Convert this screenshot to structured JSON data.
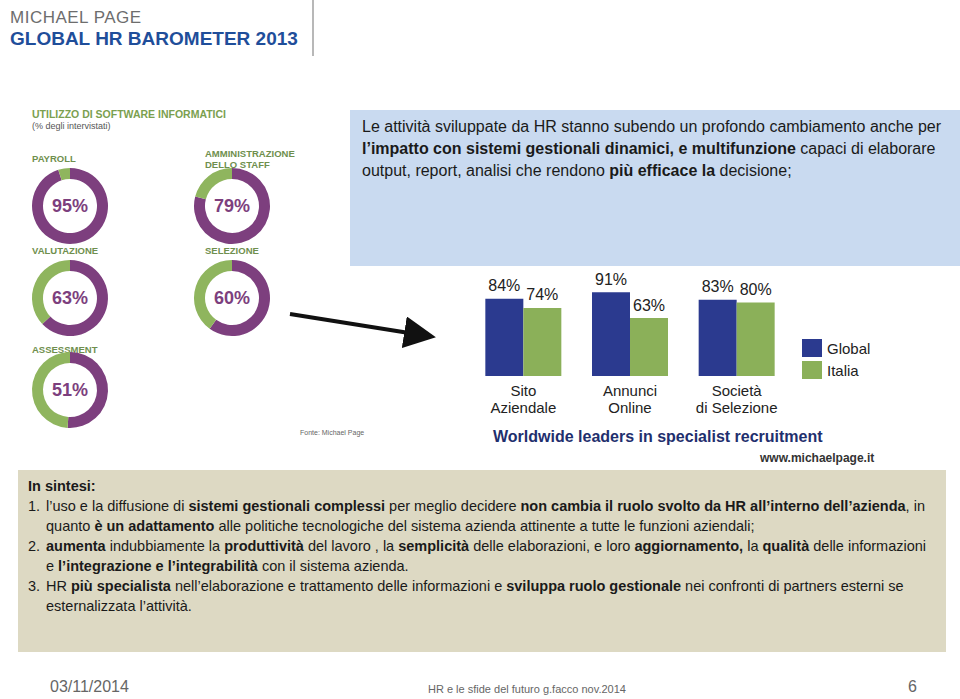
{
  "header": {
    "brand": "MICHAEL PAGE",
    "title": "GLOBAL HR BAROMETER 2013"
  },
  "infographic": {
    "title": "UTILIZZO DI SOFTWARE INFORMATICI",
    "subtitle": "(% degli intervistati)",
    "source": "Fonte: Michael Page",
    "tagline": "Worldwide leaders in specialist recruitment",
    "website": "www.michaelpage.it"
  },
  "chart_data": [
    {
      "type": "pie",
      "title": "PAYROLL",
      "values": [
        95
      ],
      "value_labels": [
        "95%"
      ],
      "data_labels": true,
      "colors": [
        "#7d3f7e",
        "#8fb55e"
      ]
    },
    {
      "type": "pie",
      "title": "AMMINISTRAZIONE\nDELLO STAFF",
      "values": [
        79
      ],
      "value_labels": [
        "79%"
      ],
      "data_labels": true,
      "colors": [
        "#7d3f7e",
        "#8fb55e"
      ]
    },
    {
      "type": "pie",
      "title": "VALUTAZIONE",
      "values": [
        63
      ],
      "value_labels": [
        "63%"
      ],
      "data_labels": true,
      "colors": [
        "#7d3f7e",
        "#8fb55e"
      ]
    },
    {
      "type": "pie",
      "title": "SELEZIONE",
      "values": [
        60
      ],
      "value_labels": [
        "60%"
      ],
      "data_labels": true,
      "colors": [
        "#7d3f7e",
        "#8fb55e"
      ]
    },
    {
      "type": "pie",
      "title": "ASSESSMENT",
      "values": [
        51
      ],
      "value_labels": [
        "51%"
      ],
      "data_labels": true,
      "colors": [
        "#7d3f7e",
        "#8fb55e"
      ]
    },
    {
      "type": "bar",
      "categories": [
        "Sito\nAziendale",
        "Annunci\nOnline",
        "Società\ndi Selezione"
      ],
      "series": [
        {
          "name": "Global",
          "color": "#2b3a8f",
          "values": [
            84,
            91,
            83
          ],
          "value_labels": [
            "84%",
            "91%",
            "83%"
          ]
        },
        {
          "name": "Italia",
          "color": "#8bb059",
          "values": [
            74,
            63,
            80
          ],
          "value_labels": [
            "74%",
            "63%",
            "80%"
          ]
        }
      ],
      "ylim": [
        0,
        100
      ],
      "data_labels": true,
      "legend": "right",
      "grid": false,
      "tick_labels": "x"
    }
  ],
  "callout": [
    {
      "text": "Le attività sviluppate da HR stanno subendo un profondo cambiamento anche per ",
      "bold": false
    },
    {
      "text": "l’impatto con sistemi gestionali dinamici, e multifunzione",
      "bold": true
    },
    {
      "text": " capaci di elaborare output, report, analisi che rendono ",
      "bold": false
    },
    {
      "text": "più efficace la",
      "bold": true
    },
    {
      "text": " decisione;",
      "bold": false
    }
  ],
  "summary": {
    "title": "In sintesi:",
    "items": [
      {
        "number": "1.",
        "runs": [
          {
            "text": "l’uso e la diffusione di ",
            "bold": false
          },
          {
            "text": "sistemi gestionali complessi",
            "bold": true
          },
          {
            "text": " per meglio decidere ",
            "bold": false
          },
          {
            "text": "non cambia il ruolo svolto da HR all’interno dell’azienda",
            "bold": true
          },
          {
            "text": ", in quanto ",
            "bold": false
          },
          {
            "text": "è un adattamento",
            "bold": true
          },
          {
            "text": " alle politiche tecnologiche del sistema azienda attinente a tutte le funzioni aziendali;",
            "bold": false
          }
        ]
      },
      {
        "number": "2.",
        "runs": [
          {
            "text": "aumenta",
            "bold": true
          },
          {
            "text": " indubbiamente la ",
            "bold": false
          },
          {
            "text": "produttività",
            "bold": true
          },
          {
            "text": " del lavoro , la ",
            "bold": false
          },
          {
            "text": "semplicità",
            "bold": true
          },
          {
            "text": " delle elaborazioni, e loro ",
            "bold": false
          },
          {
            "text": "aggiornamento,",
            "bold": true
          },
          {
            "text": " la ",
            "bold": false
          },
          {
            "text": "qualità",
            "bold": true
          },
          {
            "text": " delle informazioni e ",
            "bold": false
          },
          {
            "text": "l’integrazione e l’integrabilità",
            "bold": true
          },
          {
            "text": " con il sistema azienda.",
            "bold": false
          }
        ]
      },
      {
        "number": "3.",
        "runs": [
          {
            "text": "HR ",
            "bold": false
          },
          {
            "text": "più specialista",
            "bold": true
          },
          {
            "text": " nell’elaborazione e trattamento delle informazioni e ",
            "bold": false
          },
          {
            "text": "sviluppa ruolo gestionale",
            "bold": true
          },
          {
            "text": " nei confronti di partners esterni se esternalizzata l’attività.",
            "bold": false
          }
        ]
      }
    ]
  },
  "footer": {
    "date": "03/11/2014",
    "caption": "HR e le sfide del futuro g.facco nov.2014",
    "page": "6"
  }
}
